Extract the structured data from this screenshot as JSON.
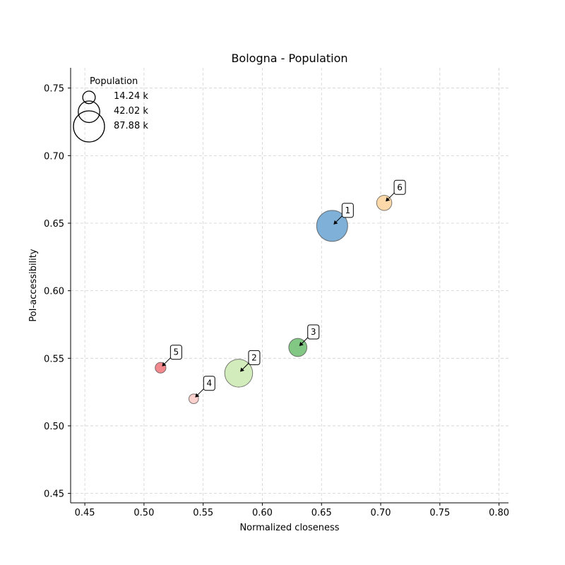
{
  "chart_data": {
    "type": "scatter",
    "title": "Bologna - Population",
    "xlabel": "Normalized closeness",
    "ylabel": "PoI-accessibility",
    "xlim": [
      0.438,
      0.808
    ],
    "ylim": [
      0.443,
      0.765
    ],
    "xticks": [
      "0.45",
      "0.50",
      "0.55",
      "0.60",
      "0.65",
      "0.70",
      "0.75",
      "0.80"
    ],
    "yticks": [
      "0.45",
      "0.50",
      "0.55",
      "0.60",
      "0.65",
      "0.70",
      "0.75"
    ],
    "grid": true,
    "size_variable": "Population",
    "legend": {
      "title": "Population",
      "placement": "upper-left",
      "entries": [
        {
          "label": "14.24 k",
          "population_k": 14.24
        },
        {
          "label": "42.02 k",
          "population_k": 42.02
        },
        {
          "label": "87.88 k",
          "population_k": 87.88
        }
      ]
    },
    "points": [
      {
        "label": "1",
        "x": 0.659,
        "y": 0.648,
        "population_k": 87.88,
        "color": "#7fb1d8"
      },
      {
        "label": "2",
        "x": 0.58,
        "y": 0.539,
        "population_k": 71.0,
        "color": "#d3ecbb"
      },
      {
        "label": "3",
        "x": 0.63,
        "y": 0.558,
        "population_k": 30.0,
        "color": "#83c784"
      },
      {
        "label": "4",
        "x": 0.542,
        "y": 0.52,
        "population_k": 8.5,
        "color": "#fbd0cd"
      },
      {
        "label": "5",
        "x": 0.514,
        "y": 0.543,
        "population_k": 10.5,
        "color": "#f2898e"
      },
      {
        "label": "6",
        "x": 0.703,
        "y": 0.665,
        "population_k": 21.0,
        "color": "#fdd9a9"
      }
    ]
  }
}
